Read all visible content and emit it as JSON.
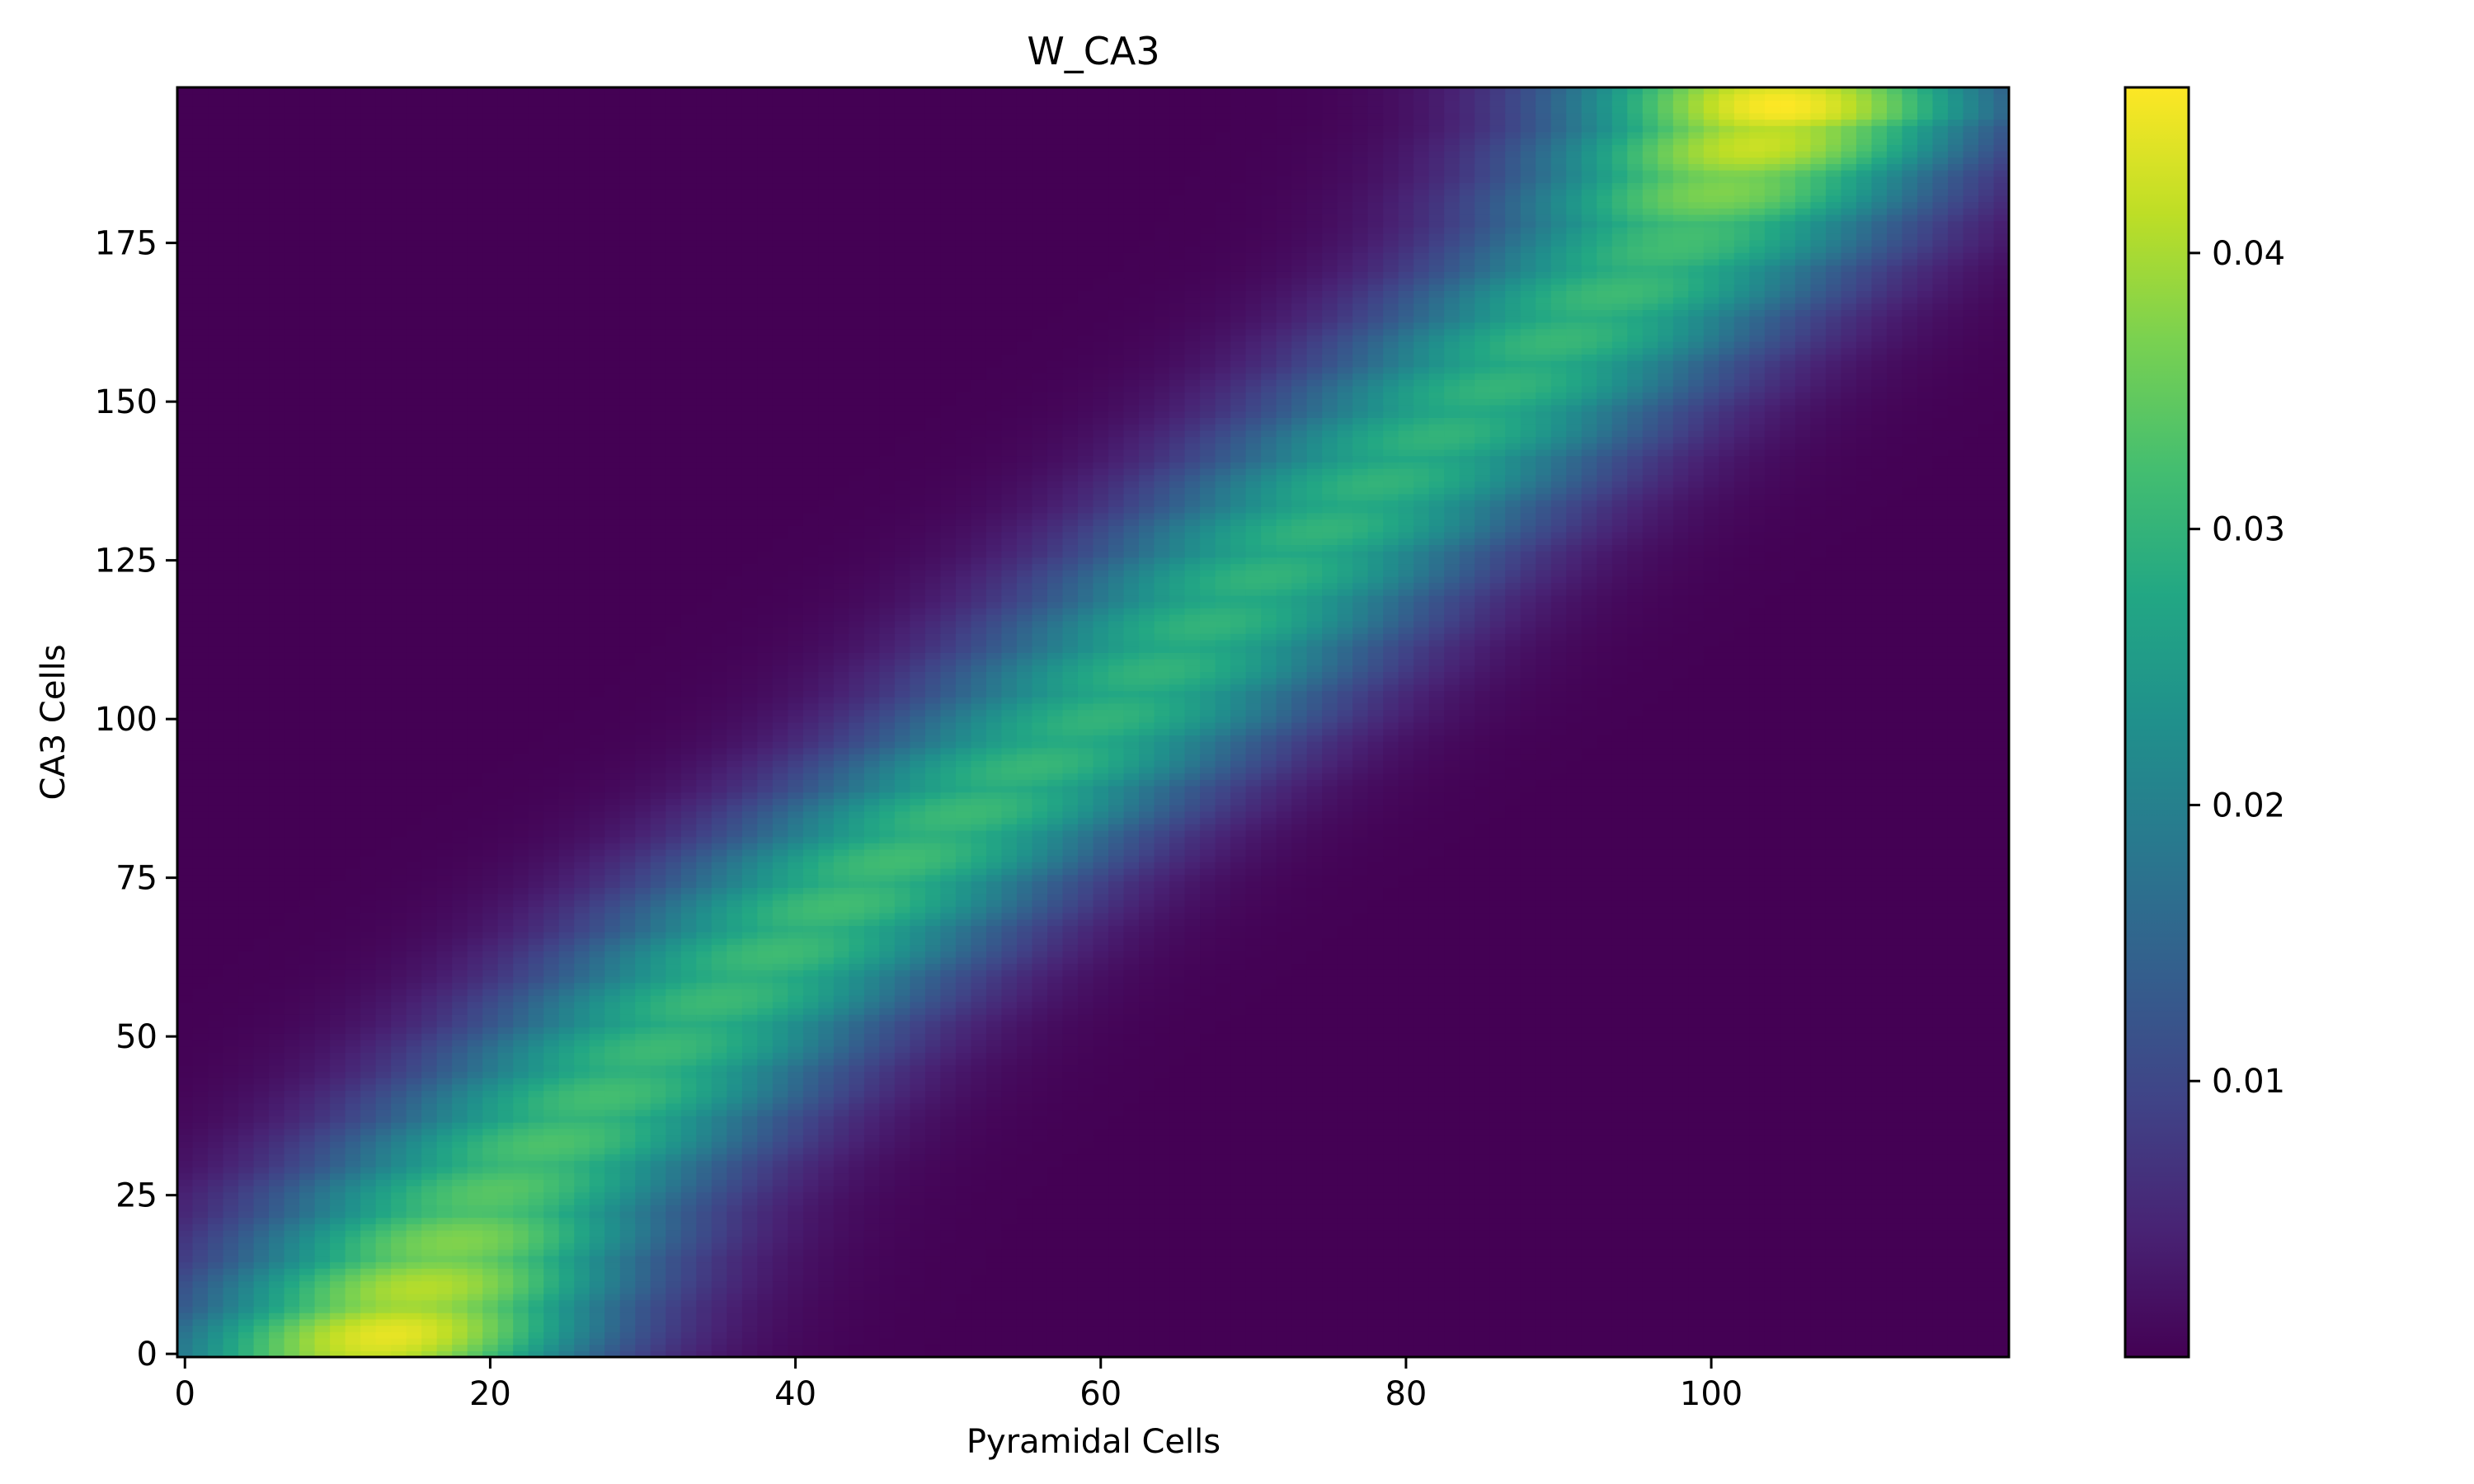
{
  "chart_data": {
    "type": "heatmap",
    "title": "W_CA3",
    "xlabel": "Pyramidal Cells",
    "ylabel": "CA3 Cells",
    "x_range": [
      0,
      119
    ],
    "y_range": [
      0,
      199
    ],
    "xlim": [
      -0.5,
      119.5
    ],
    "ylim": [
      -0.5,
      199.5
    ],
    "x_ticks": [
      0,
      20,
      40,
      60,
      80,
      100
    ],
    "y_ticks": [
      0,
      25,
      50,
      75,
      100,
      125,
      150,
      175
    ],
    "colormap": "viridis",
    "color_range": [
      0.0,
      0.046
    ],
    "colorbar_ticks": [
      0.01,
      0.02,
      0.03,
      0.04
    ],
    "colorbar_tick_labels": [
      "0.01",
      "0.02",
      "0.03",
      "0.04"
    ],
    "pattern": "diagonal band of high weights running from (x≈0, y≈0) to (x≈119, y≈199)",
    "band_samples": [
      {
        "y": 0,
        "x_center": 12.5,
        "peak": 0.046
      },
      {
        "y": 25,
        "x_center": 20,
        "peak": 0.034
      },
      {
        "y": 50,
        "x_center": 32,
        "peak": 0.031
      },
      {
        "y": 75,
        "x_center": 45,
        "peak": 0.032
      },
      {
        "y": 100,
        "x_center": 60,
        "peak": 0.03
      },
      {
        "y": 125,
        "x_center": 72,
        "peak": 0.03
      },
      {
        "y": 150,
        "x_center": 85,
        "peak": 0.03
      },
      {
        "y": 175,
        "x_center": 98,
        "peak": 0.032
      },
      {
        "y": 195,
        "x_center": 104.5,
        "peak": 0.046
      }
    ],
    "band_sigma_x": 10,
    "background_value": 0.0,
    "grid": false,
    "legend": "colorbar-right"
  }
}
